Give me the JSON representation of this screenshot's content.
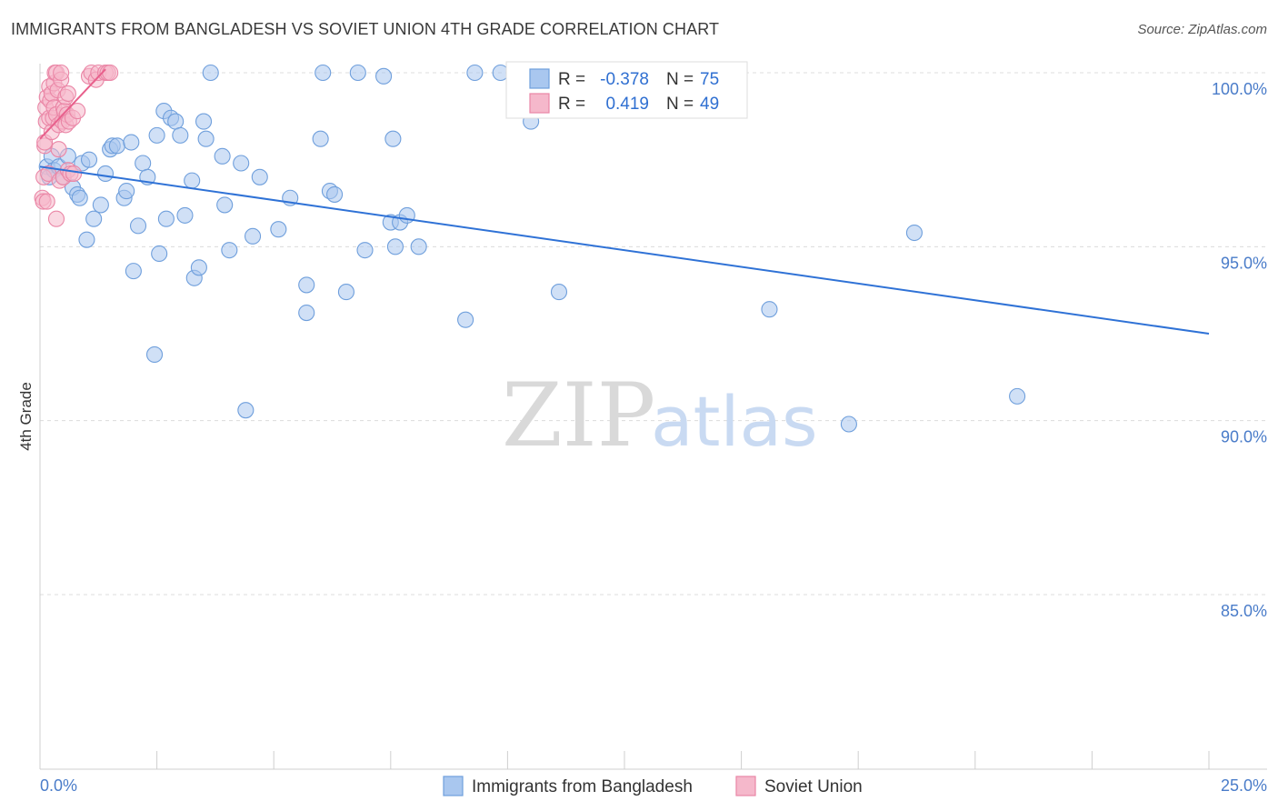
{
  "title": "IMMIGRANTS FROM BANGLADESH VS SOVIET UNION 4TH GRADE CORRELATION CHART",
  "source": "Source: ZipAtlas.com",
  "watermark": {
    "zip": "ZIP",
    "atlas": "atlas"
  },
  "colors": {
    "blue_fill": "#a9c7ef",
    "blue_stroke": "#6f9fdc",
    "blue_line": "#2f72d6",
    "pink_fill": "#f5b8cb",
    "pink_stroke": "#ea86a6",
    "pink_line": "#e8608c",
    "grid": "#dcdcdc",
    "axis_label": "#4a7cc9"
  },
  "legend": {
    "rows": [
      {
        "r_label": "R = ",
        "r_value": "-0.378",
        "n_label": "N = ",
        "n_value": "75"
      },
      {
        "r_label": "R = ",
        "r_value": "0.419",
        "n_label": "N = ",
        "n_value": "49"
      }
    ]
  },
  "chart_data": {
    "type": "scatter",
    "title": "IMMIGRANTS FROM BANGLADESH VS SOVIET UNION 4TH GRADE CORRELATION CHART",
    "ylabel": "4th Grade",
    "xlabel": "",
    "xlim": [
      0,
      25
    ],
    "ylim": [
      80.0,
      100.5
    ],
    "x_tick_labels": [
      "0.0%",
      "25.0%"
    ],
    "y_ticks": [
      85,
      90,
      95,
      100
    ],
    "y_tick_labels": [
      "85.0%",
      "90.0%",
      "95.0%",
      "100.0%"
    ],
    "grid": true,
    "legend_position": "top-center",
    "series": [
      {
        "name": "Immigrants from Bangladesh",
        "color": "blue",
        "trend": {
          "x": [
            0,
            25
          ],
          "y": [
            97.3,
            92.5
          ]
        },
        "points": [
          [
            0.15,
            97.3
          ],
          [
            0.2,
            97.0
          ],
          [
            0.25,
            97.6
          ],
          [
            0.3,
            97.2
          ],
          [
            0.4,
            97.3
          ],
          [
            0.5,
            97.0
          ],
          [
            0.6,
            97.6
          ],
          [
            0.7,
            96.7
          ],
          [
            0.8,
            96.5
          ],
          [
            0.85,
            96.4
          ],
          [
            0.9,
            97.4
          ],
          [
            1.0,
            95.2
          ],
          [
            1.05,
            97.5
          ],
          [
            1.15,
            95.8
          ],
          [
            1.3,
            96.2
          ],
          [
            1.4,
            97.1
          ],
          [
            1.5,
            97.8
          ],
          [
            1.55,
            97.9
          ],
          [
            1.65,
            97.9
          ],
          [
            1.8,
            96.4
          ],
          [
            1.85,
            96.6
          ],
          [
            1.95,
            98.0
          ],
          [
            2.1,
            95.6
          ],
          [
            2.2,
            97.4
          ],
          [
            2.3,
            97.0
          ],
          [
            2.0,
            94.3
          ],
          [
            2.45,
            91.9
          ],
          [
            2.5,
            98.2
          ],
          [
            2.55,
            94.8
          ],
          [
            2.65,
            98.9
          ],
          [
            2.7,
            95.8
          ],
          [
            2.8,
            98.7
          ],
          [
            2.9,
            98.6
          ],
          [
            3.0,
            98.2
          ],
          [
            3.1,
            95.9
          ],
          [
            3.25,
            96.9
          ],
          [
            3.3,
            94.1
          ],
          [
            3.4,
            94.4
          ],
          [
            3.5,
            98.6
          ],
          [
            3.55,
            98.1
          ],
          [
            3.65,
            100.0
          ],
          [
            3.9,
            97.6
          ],
          [
            3.95,
            96.2
          ],
          [
            4.05,
            94.9
          ],
          [
            4.3,
            97.4
          ],
          [
            4.4,
            90.3
          ],
          [
            4.55,
            95.3
          ],
          [
            4.7,
            97.0
          ],
          [
            5.1,
            95.5
          ],
          [
            5.35,
            96.4
          ],
          [
            5.7,
            93.9
          ],
          [
            5.7,
            93.1
          ],
          [
            6.0,
            98.1
          ],
          [
            6.05,
            100.0
          ],
          [
            6.2,
            96.6
          ],
          [
            6.3,
            96.5
          ],
          [
            6.55,
            93.7
          ],
          [
            6.8,
            100.0
          ],
          [
            6.95,
            94.9
          ],
          [
            7.35,
            99.9
          ],
          [
            7.5,
            95.7
          ],
          [
            7.55,
            98.1
          ],
          [
            7.6,
            95.0
          ],
          [
            7.7,
            95.7
          ],
          [
            7.85,
            95.9
          ],
          [
            8.1,
            95.0
          ],
          [
            9.1,
            92.9
          ],
          [
            9.3,
            100.0
          ],
          [
            9.85,
            100.0
          ],
          [
            10.5,
            98.6
          ],
          [
            11.1,
            93.7
          ],
          [
            15.6,
            93.2
          ],
          [
            17.3,
            89.9
          ],
          [
            18.7,
            95.4
          ],
          [
            20.9,
            90.7
          ]
        ]
      },
      {
        "name": "Soviet Union",
        "color": "pink",
        "trend": {
          "x": [
            0,
            1.4
          ],
          "y": [
            98.1,
            100.1
          ]
        },
        "points": [
          [
            0.05,
            96.4
          ],
          [
            0.07,
            96.3
          ],
          [
            0.08,
            97.0
          ],
          [
            0.1,
            97.9
          ],
          [
            0.1,
            98.0
          ],
          [
            0.12,
            99.0
          ],
          [
            0.13,
            98.6
          ],
          [
            0.15,
            96.3
          ],
          [
            0.15,
            99.3
          ],
          [
            0.18,
            97.1
          ],
          [
            0.2,
            98.7
          ],
          [
            0.2,
            99.6
          ],
          [
            0.22,
            99.2
          ],
          [
            0.25,
            99.4
          ],
          [
            0.25,
            98.3
          ],
          [
            0.28,
            98.7
          ],
          [
            0.3,
            99.0
          ],
          [
            0.3,
            99.7
          ],
          [
            0.32,
            100.0
          ],
          [
            0.35,
            100.0
          ],
          [
            0.35,
            98.8
          ],
          [
            0.38,
            99.5
          ],
          [
            0.4,
            97.8
          ],
          [
            0.4,
            98.5
          ],
          [
            0.42,
            96.9
          ],
          [
            0.45,
            99.8
          ],
          [
            0.45,
            100.0
          ],
          [
            0.48,
            98.6
          ],
          [
            0.5,
            99.0
          ],
          [
            0.5,
            97.0
          ],
          [
            0.52,
            98.9
          ],
          [
            0.55,
            99.3
          ],
          [
            0.55,
            98.5
          ],
          [
            0.58,
            98.8
          ],
          [
            0.6,
            97.2
          ],
          [
            0.6,
            99.4
          ],
          [
            0.62,
            98.6
          ],
          [
            0.65,
            97.1
          ],
          [
            0.7,
            98.7
          ],
          [
            0.72,
            97.1
          ],
          [
            0.8,
            98.9
          ],
          [
            1.05,
            99.9
          ],
          [
            1.1,
            100.0
          ],
          [
            1.2,
            99.8
          ],
          [
            1.25,
            100.0
          ],
          [
            1.4,
            100.0
          ],
          [
            1.45,
            100.0
          ],
          [
            1.5,
            100.0
          ],
          [
            0.35,
            95.8
          ]
        ]
      }
    ]
  }
}
